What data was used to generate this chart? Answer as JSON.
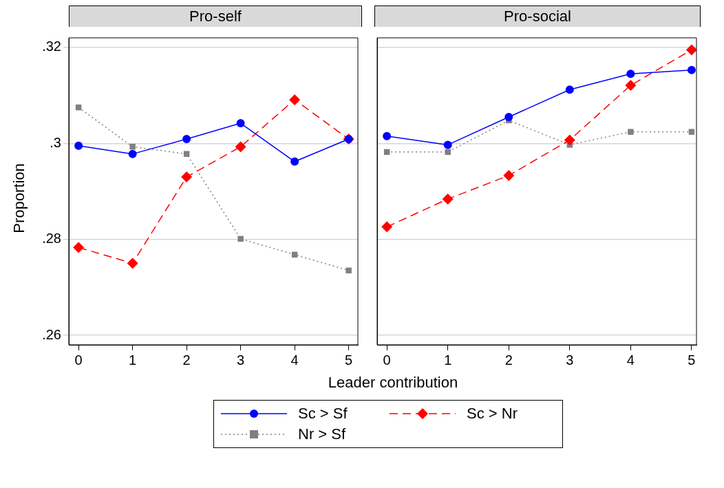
{
  "chart_data": [
    {
      "type": "line",
      "title": "Pro-self",
      "ylabel": "Proportion",
      "xlabel": "Leader contribution",
      "x": [
        0,
        1,
        2,
        3,
        4,
        5
      ],
      "xlim": [
        -0.18,
        5.17
      ],
      "xticks": [
        0,
        1,
        2,
        3,
        4,
        5
      ],
      "ylim": [
        0.258,
        0.322
      ],
      "yticks": [
        {
          "value": 0.26,
          "label": ".26"
        },
        {
          "value": 0.28,
          "label": ".28"
        },
        {
          "value": 0.3,
          "label": ".3"
        },
        {
          "value": 0.32,
          "label": ".32"
        }
      ],
      "grid": "y",
      "legend": "bottom",
      "series": [
        {
          "name": "Sc > Sf",
          "color": "#0000ff",
          "marker": "circle",
          "line_style": "solid",
          "values": [
            0.2995,
            0.2978,
            0.3009,
            0.3042,
            0.2962,
            0.3009
          ]
        },
        {
          "name": "Sc > Nr",
          "color": "#ff0000",
          "marker": "diamond",
          "line_style": "dashed",
          "values": [
            0.2783,
            0.275,
            0.293,
            0.2993,
            0.3091,
            0.3009
          ]
        },
        {
          "name": "Nr > Sf",
          "color": "#808080",
          "marker": "square",
          "line_style": "dotted",
          "values": [
            0.3075,
            0.2993,
            0.2978,
            0.2801,
            0.2768,
            0.2735
          ]
        }
      ]
    },
    {
      "type": "line",
      "title": "Pro-social",
      "x": [
        0,
        1,
        2,
        3,
        4,
        5
      ],
      "xlim": [
        -0.16,
        5.08
      ],
      "xticks": [
        0,
        1,
        2,
        3,
        4,
        5
      ],
      "ylim": [
        0.258,
        0.322
      ],
      "yticks": [
        0.26,
        0.28,
        0.3,
        0.32
      ],
      "grid": "y",
      "tick_labels": "x",
      "series": [
        {
          "color": "#0000ff",
          "marker": "circle",
          "line_style": "solid",
          "values": [
            0.3015,
            0.2997,
            0.3055,
            0.3112,
            0.3145,
            0.3153
          ]
        },
        {
          "color": "#ff0000",
          "marker": "diamond",
          "line_style": "dashed",
          "values": [
            0.2826,
            0.2884,
            0.2933,
            0.3007,
            0.3121,
            0.3195
          ]
        },
        {
          "color": "#808080",
          "marker": "square",
          "line_style": "dotted",
          "values": [
            0.2982,
            0.2982,
            0.3048,
            0.2997,
            0.3024,
            0.3024
          ]
        }
      ]
    }
  ]
}
